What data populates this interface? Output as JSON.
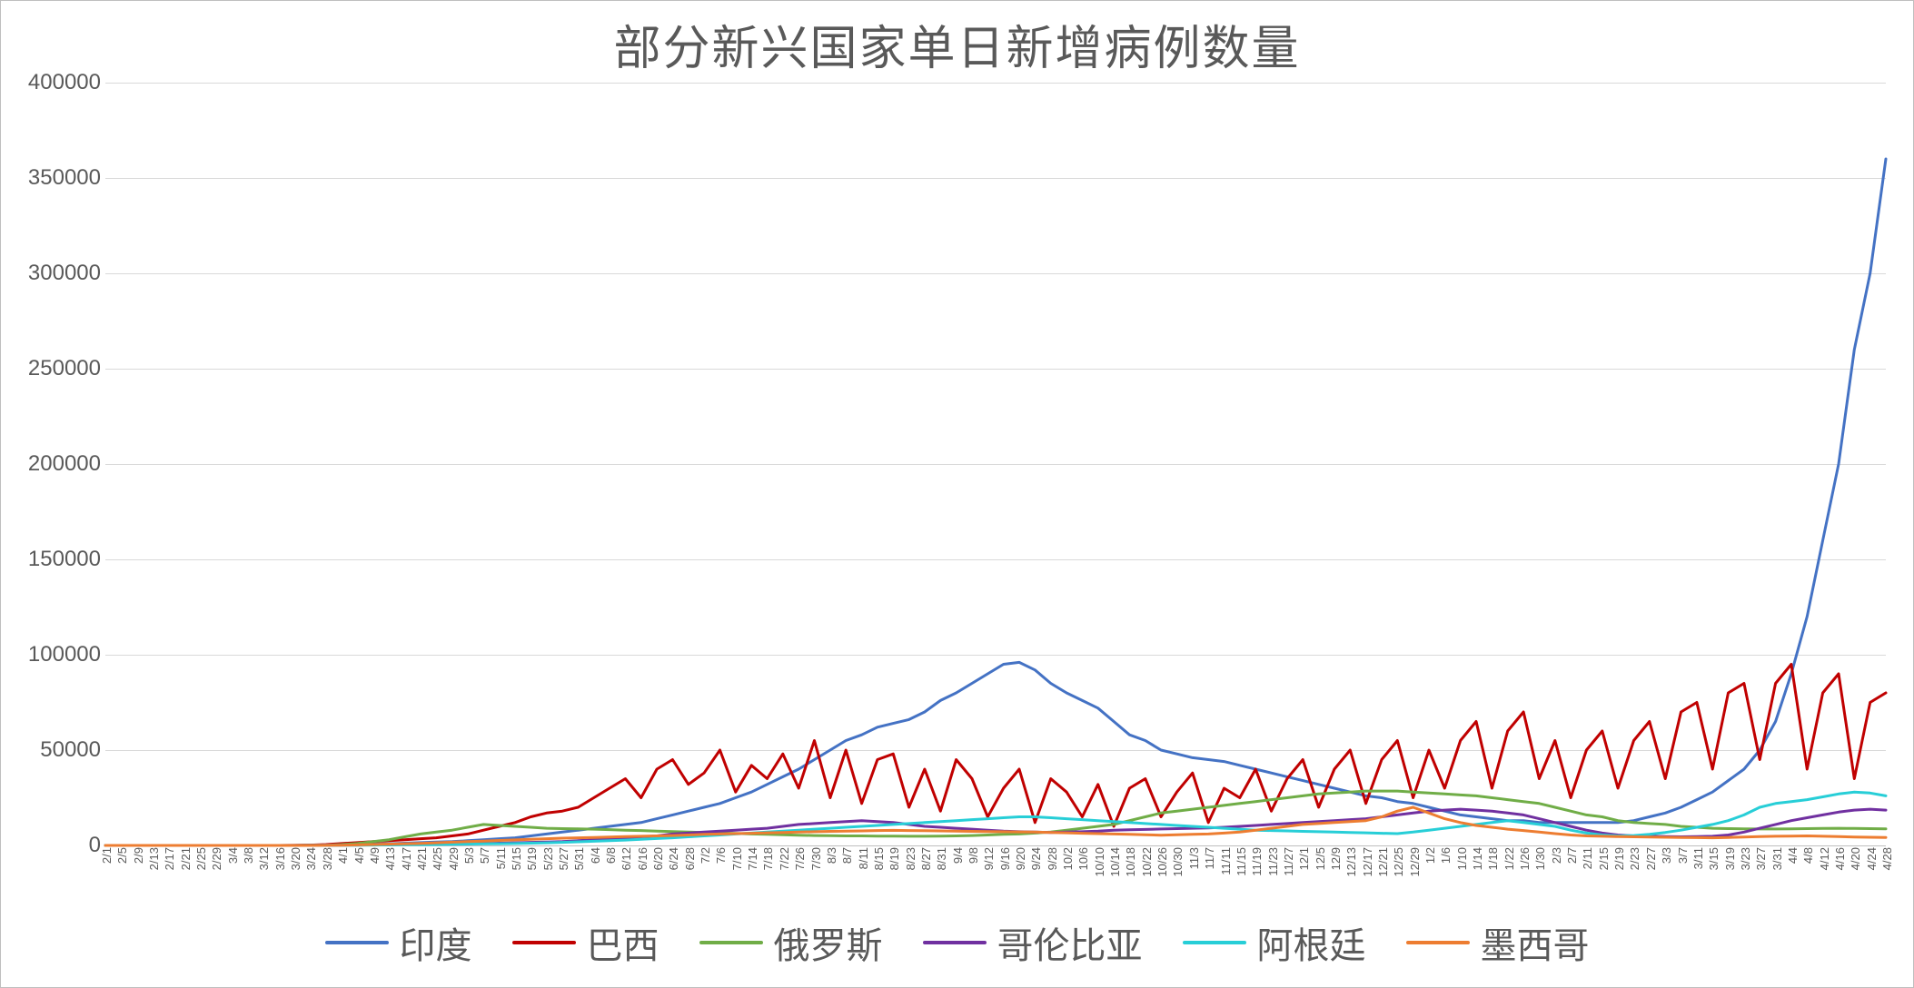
{
  "chart": {
    "type": "line",
    "title": "部分新兴国家单日新增病例数量",
    "title_fontsize": 52,
    "title_color": "#595959",
    "background_color": "#ffffff",
    "border_color": "#bfbfbf",
    "grid_color": "#d9d9d9",
    "axis_text_color": "#595959",
    "axis_fontsize": 24,
    "xaxis_fontsize": 13,
    "line_width": 3,
    "ylim": [
      0,
      400000
    ],
    "ytick_step": 50000,
    "yticks": [
      "0",
      "50000",
      "100000",
      "150000",
      "200000",
      "250000",
      "300000",
      "350000",
      "400000"
    ],
    "x_labels": [
      "2/1",
      "2/5",
      "2/9",
      "2/13",
      "2/17",
      "2/21",
      "2/25",
      "2/29",
      "3/4",
      "3/8",
      "3/12",
      "3/16",
      "3/20",
      "3/24",
      "3/28",
      "4/1",
      "4/5",
      "4/9",
      "4/13",
      "4/17",
      "4/21",
      "4/25",
      "4/29",
      "5/3",
      "5/7",
      "5/11",
      "5/15",
      "5/19",
      "5/23",
      "5/27",
      "5/31",
      "6/4",
      "6/8",
      "6/12",
      "6/16",
      "6/20",
      "6/24",
      "6/28",
      "7/2",
      "7/6",
      "7/10",
      "7/14",
      "7/18",
      "7/22",
      "7/26",
      "7/30",
      "8/3",
      "8/7",
      "8/11",
      "8/15",
      "8/19",
      "8/23",
      "8/27",
      "8/31",
      "9/4",
      "9/8",
      "9/12",
      "9/16",
      "9/20",
      "9/24",
      "9/28",
      "10/2",
      "10/6",
      "10/10",
      "10/14",
      "10/18",
      "10/22",
      "10/26",
      "10/30",
      "11/3",
      "11/7",
      "11/11",
      "11/15",
      "11/19",
      "11/23",
      "11/27",
      "12/1",
      "12/5",
      "12/9",
      "12/13",
      "12/17",
      "12/21",
      "12/25",
      "12/29",
      "1/2",
      "1/6",
      "1/10",
      "1/14",
      "1/18",
      "1/22",
      "1/26",
      "1/30",
      "2/3",
      "2/7",
      "2/11",
      "2/15",
      "2/19",
      "2/23",
      "2/27",
      "3/3",
      "3/7",
      "3/11",
      "3/15",
      "3/19",
      "3/23",
      "3/27",
      "3/31",
      "4/4",
      "4/8",
      "4/12",
      "4/16",
      "4/20",
      "4/24",
      "4/28"
    ],
    "legend_fontsize": 40,
    "series": [
      {
        "name": "印度",
        "color": "#4472c4",
        "values": [
          0,
          0,
          0,
          0,
          0,
          0,
          0,
          0,
          0,
          0,
          0,
          10,
          50,
          100,
          150,
          300,
          500,
          700,
          900,
          1200,
          1500,
          1800,
          2000,
          2500,
          3000,
          3500,
          4000,
          5000,
          6000,
          7000,
          8000,
          9000,
          10000,
          11000,
          12000,
          14000,
          16000,
          18000,
          20000,
          22000,
          25000,
          28000,
          32000,
          36000,
          40000,
          45000,
          50000,
          55000,
          58000,
          62000,
          64000,
          66000,
          70000,
          76000,
          80000,
          85000,
          90000,
          95000,
          96000,
          92000,
          85000,
          80000,
          76000,
          72000,
          65000,
          58000,
          55000,
          50000,
          48000,
          46000,
          45000,
          44000,
          42000,
          40000,
          38000,
          36000,
          34000,
          32000,
          30000,
          28000,
          26000,
          25000,
          23000,
          22000,
          20000,
          18000,
          16000,
          15000,
          14000,
          13000,
          13000,
          12000,
          12000,
          12000,
          12000,
          12000,
          12000,
          13000,
          15000,
          17000,
          20000,
          24000,
          28000,
          34000,
          40000,
          50000,
          65000,
          90000,
          120000,
          160000,
          200000,
          260000,
          300000,
          360000
        ]
      },
      {
        "name": "巴西",
        "color": "#c00000",
        "values": [
          0,
          0,
          0,
          0,
          0,
          0,
          0,
          0,
          0,
          0,
          0,
          0,
          50,
          200,
          500,
          1000,
          1500,
          2000,
          2500,
          3000,
          3500,
          4000,
          5000,
          6000,
          8000,
          10000,
          12000,
          15000,
          17000,
          18000,
          20000,
          25000,
          30000,
          35000,
          25000,
          40000,
          45000,
          32000,
          38000,
          50000,
          28000,
          42000,
          35000,
          48000,
          30000,
          55000,
          25000,
          50000,
          22000,
          45000,
          48000,
          20000,
          40000,
          18000,
          45000,
          35000,
          15000,
          30000,
          40000,
          12000,
          35000,
          28000,
          15000,
          32000,
          10000,
          30000,
          35000,
          15000,
          28000,
          38000,
          12000,
          30000,
          25000,
          40000,
          18000,
          35000,
          45000,
          20000,
          40000,
          50000,
          22000,
          45000,
          55000,
          25000,
          50000,
          30000,
          55000,
          65000,
          30000,
          60000,
          70000,
          35000,
          55000,
          25000,
          50000,
          60000,
          30000,
          55000,
          65000,
          35000,
          70000,
          75000,
          40000,
          80000,
          85000,
          45000,
          85000,
          95000,
          40000,
          80000,
          90000,
          35000,
          75000,
          80000
        ]
      },
      {
        "name": "俄罗斯",
        "color": "#70ad47",
        "values": [
          0,
          0,
          0,
          0,
          0,
          0,
          0,
          0,
          0,
          0,
          0,
          0,
          10,
          50,
          150,
          500,
          1000,
          2000,
          3000,
          4500,
          6000,
          7000,
          8000,
          9500,
          11000,
          10500,
          10000,
          9500,
          9000,
          8800,
          8700,
          8500,
          8300,
          8000,
          7800,
          7500,
          7300,
          7000,
          6800,
          6500,
          6300,
          6000,
          5800,
          5600,
          5400,
          5200,
          5100,
          5000,
          5000,
          4900,
          4900,
          4800,
          4800,
          4900,
          5000,
          5200,
          5500,
          5800,
          6000,
          6500,
          7000,
          8000,
          9000,
          10000,
          11000,
          13000,
          15000,
          17000,
          18000,
          19000,
          20000,
          21000,
          22000,
          23000,
          24000,
          25000,
          26000,
          27000,
          27500,
          28000,
          28500,
          28500,
          28500,
          28000,
          27500,
          27000,
          26500,
          26000,
          25000,
          24000,
          23000,
          22000,
          20000,
          18000,
          16000,
          15000,
          13000,
          12000,
          11500,
          11000,
          10000,
          9500,
          9000,
          8800,
          8700,
          8600,
          8600,
          8700,
          8800,
          8900,
          9000,
          8900,
          8800,
          8700
        ]
      },
      {
        "name": "哥伦比亚",
        "color": "#7030a0",
        "values": [
          0,
          0,
          0,
          0,
          0,
          0,
          0,
          0,
          0,
          0,
          0,
          0,
          10,
          40,
          80,
          120,
          200,
          300,
          400,
          500,
          600,
          700,
          800,
          900,
          1000,
          1200,
          1400,
          1600,
          1800,
          2000,
          2500,
          3000,
          3500,
          4000,
          4500,
          5000,
          6000,
          6500,
          7000,
          7500,
          8000,
          8500,
          9000,
          10000,
          11000,
          11500,
          12000,
          12500,
          13000,
          12500,
          12000,
          11000,
          10000,
          9500,
          9000,
          8500,
          8000,
          7500,
          7200,
          7000,
          6800,
          7000,
          7200,
          7500,
          8000,
          8200,
          8400,
          8600,
          8800,
          9000,
          9200,
          9500,
          10000,
          10500,
          11000,
          11500,
          12000,
          12500,
          13000,
          13500,
          14000,
          15000,
          16000,
          17000,
          18000,
          18500,
          19000,
          18500,
          18000,
          17000,
          16000,
          14000,
          12000,
          10000,
          8000,
          6500,
          5500,
          5000,
          4800,
          4600,
          4500,
          4600,
          4800,
          5500,
          7000,
          9000,
          11000,
          13000,
          14500,
          16000,
          17500,
          18500,
          19000,
          18500
        ]
      },
      {
        "name": "阿根廷",
        "color": "#27ced7",
        "values": [
          0,
          0,
          0,
          0,
          0,
          0,
          0,
          0,
          0,
          0,
          0,
          0,
          5,
          30,
          60,
          100,
          150,
          200,
          280,
          350,
          420,
          500,
          600,
          700,
          800,
          900,
          1000,
          1200,
          1400,
          1600,
          1900,
          2200,
          2500,
          2800,
          3200,
          3600,
          4000,
          4500,
          5000,
          5500,
          6000,
          6500,
          7000,
          7500,
          8000,
          8500,
          9000,
          9500,
          10000,
          10500,
          11000,
          11500,
          12000,
          12500,
          13000,
          13500,
          14000,
          14500,
          15000,
          15000,
          14500,
          14000,
          13500,
          13000,
          12500,
          12000,
          11500,
          11000,
          10500,
          10000,
          9500,
          9000,
          8500,
          8000,
          7800,
          7600,
          7400,
          7200,
          7000,
          6800,
          6600,
          6400,
          6200,
          7000,
          8000,
          9000,
          10000,
          11000,
          12000,
          13000,
          12000,
          11000,
          10000,
          8000,
          6500,
          5500,
          5000,
          5200,
          5800,
          6800,
          8000,
          9500,
          11000,
          13000,
          16000,
          20000,
          22000,
          23000,
          24000,
          25500,
          27000,
          28000,
          27500,
          26000
        ]
      },
      {
        "name": "墨西哥",
        "color": "#ed7d31",
        "values": [
          0,
          0,
          0,
          0,
          0,
          0,
          0,
          0,
          0,
          0,
          0,
          0,
          0,
          20,
          60,
          150,
          300,
          500,
          700,
          900,
          1100,
          1400,
          1700,
          2000,
          2300,
          2600,
          2900,
          3200,
          3500,
          3800,
          4000,
          4200,
          4400,
          4600,
          4800,
          5000,
          5200,
          5500,
          5800,
          6000,
          6200,
          6400,
          6600,
          6800,
          7000,
          7200,
          7400,
          7500,
          7600,
          7800,
          7900,
          7800,
          7700,
          7600,
          7500,
          7400,
          7300,
          7200,
          7100,
          7000,
          6800,
          6600,
          6400,
          6200,
          6000,
          5800,
          5600,
          5400,
          5600,
          5800,
          6000,
          6500,
          7000,
          8000,
          9000,
          10000,
          11000,
          11500,
          12000,
          12500,
          13000,
          15000,
          18000,
          20000,
          17000,
          14000,
          12000,
          10500,
          9500,
          8500,
          7800,
          7000,
          6200,
          5500,
          5000,
          4800,
          4600,
          4500,
          4400,
          4300,
          4200,
          4100,
          4000,
          4200,
          4400,
          4600,
          4800,
          4900,
          5000,
          4800,
          4600,
          4400,
          4300,
          4200
        ]
      }
    ]
  }
}
